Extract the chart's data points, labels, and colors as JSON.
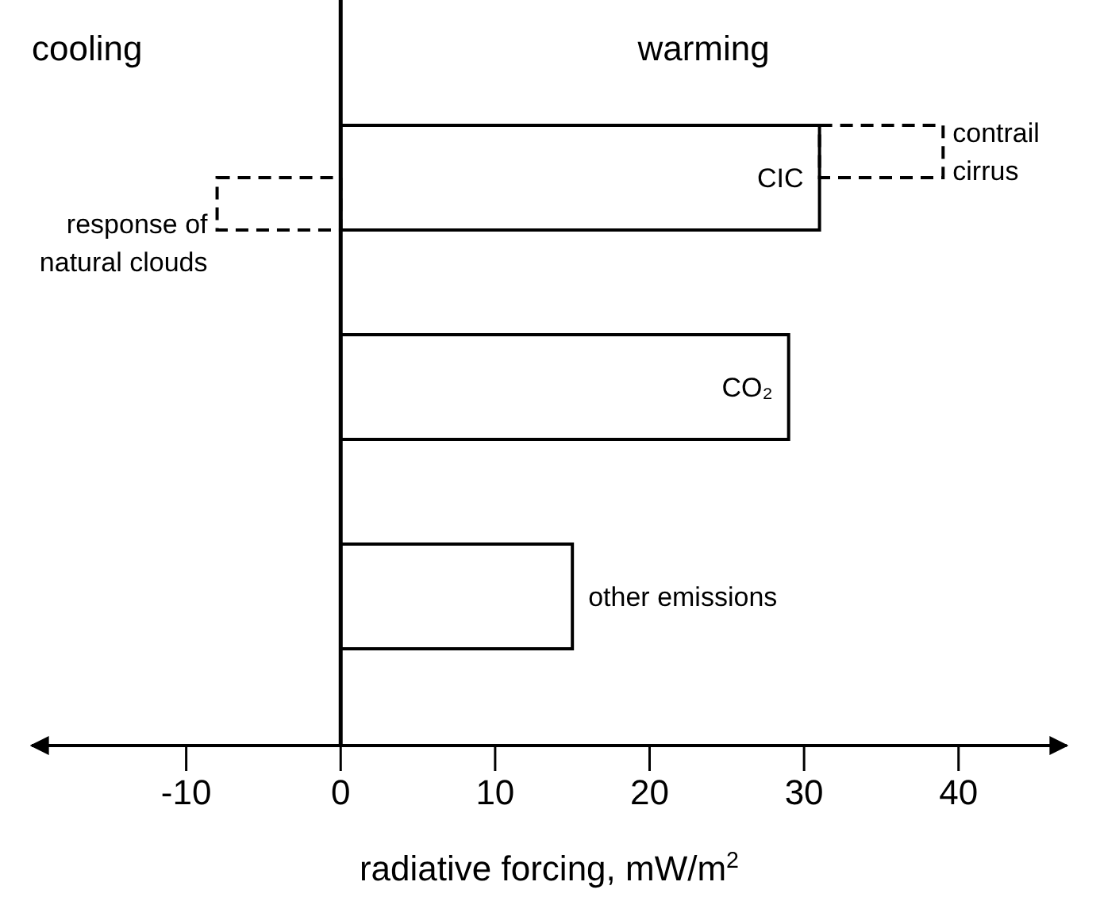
{
  "chart_data": {
    "type": "bar",
    "orientation": "horizontal",
    "xlabel": "radiative forcing, mW/m$^{2}$",
    "annotations": [
      "cooling",
      "warming"
    ],
    "categories": [
      "CIC",
      "CO₂",
      "other emissions"
    ],
    "xlim": [
      -20,
      47
    ],
    "xticks": [
      -10,
      0,
      10,
      20,
      30,
      40
    ],
    "ref_lines": [
      {
        "axis": "x",
        "value": 0,
        "color": "#000000"
      }
    ],
    "series": [
      {
        "color": "#000000",
        "values": [
          31,
          29,
          15
        ],
        "line_style": "solid"
      },
      {
        "name": "contrail cirrus",
        "color": "#000000",
        "values": [
          8,
          null,
          null
        ],
        "base": [
          31,
          null,
          null
        ],
        "line_style": "dashed"
      },
      {
        "name": "response of natural clouds",
        "color": "#000000",
        "values": [
          -8,
          null,
          null
        ],
        "base": [
          0,
          null,
          null
        ],
        "line_style": "dashed"
      }
    ],
    "grid": false
  }
}
